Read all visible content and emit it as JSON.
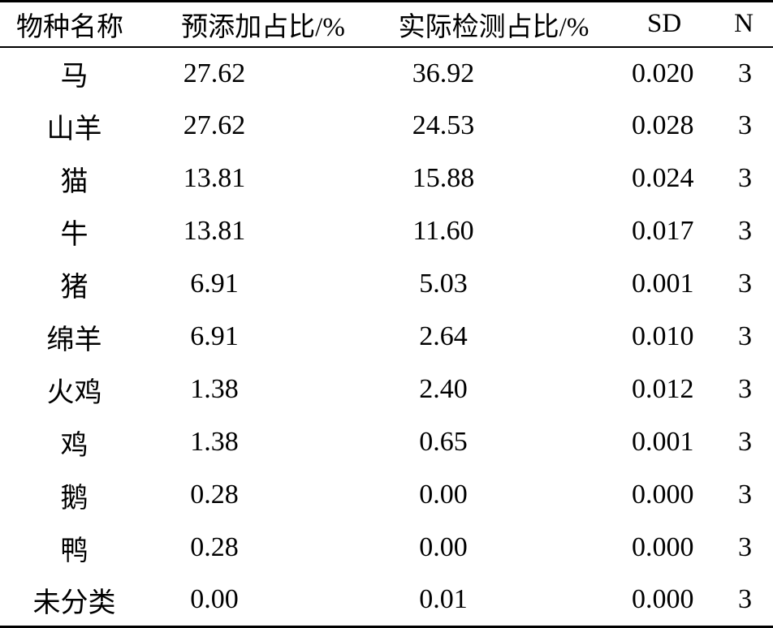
{
  "table": {
    "headers": [
      "物种名称",
      "预添加占比/%",
      "实际检测占比/%",
      "SD",
      "N"
    ],
    "rows": [
      [
        "马",
        "27.62",
        "36.92",
        "0.020",
        "3"
      ],
      [
        "山羊",
        "27.62",
        "24.53",
        "0.028",
        "3"
      ],
      [
        "猫",
        "13.81",
        "15.88",
        "0.024",
        "3"
      ],
      [
        "牛",
        "13.81",
        "11.60",
        "0.017",
        "3"
      ],
      [
        "猪",
        "6.91",
        "5.03",
        "0.001",
        "3"
      ],
      [
        "绵羊",
        "6.91",
        "2.64",
        "0.010",
        "3"
      ],
      [
        "火鸡",
        "1.38",
        "2.40",
        "0.012",
        "3"
      ],
      [
        "鸡",
        "1.38",
        "0.65",
        "0.001",
        "3"
      ],
      [
        "鹅",
        "0.28",
        "0.00",
        "0.000",
        "3"
      ],
      [
        "鸭",
        "0.28",
        "0.00",
        "0.000",
        "3"
      ],
      [
        "未分类",
        "0.00",
        "0.01",
        "0.000",
        "3"
      ]
    ]
  }
}
